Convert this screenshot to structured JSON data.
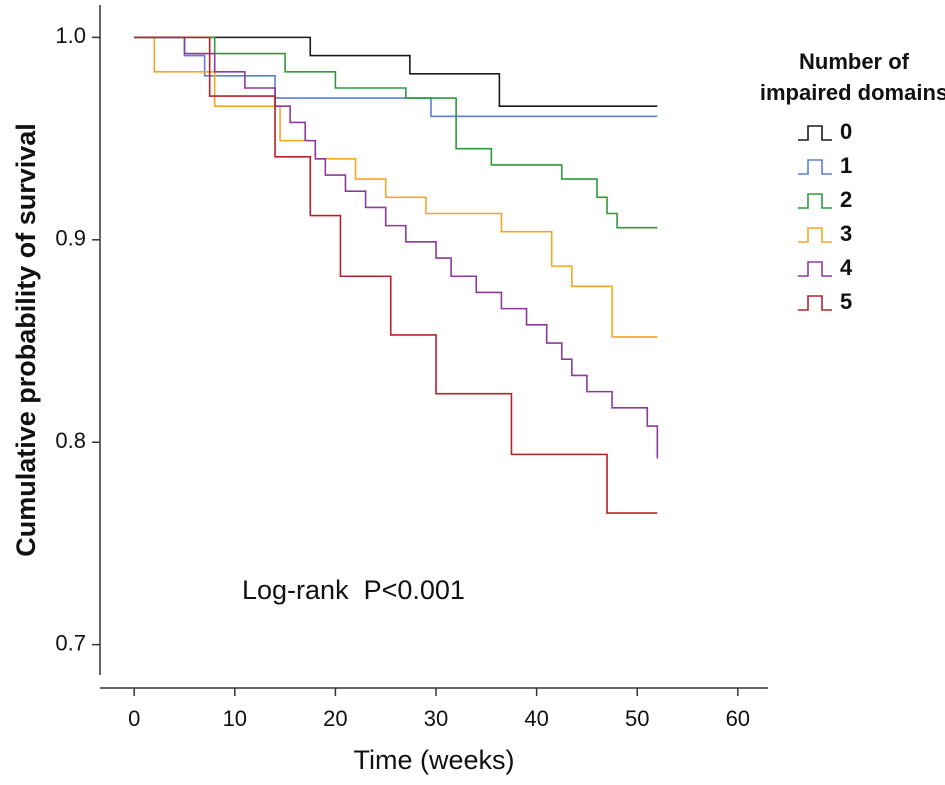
{
  "chart_data": {
    "type": "step",
    "x_label": "Time (weeks)",
    "y_label": "Cumulative probability of survival",
    "annotation": "Log-rank  P<0.001",
    "legend_title": [
      "Number of",
      "impaired domains"
    ],
    "legend_position": "right",
    "xlim": [
      -3.4,
      63
    ],
    "xticks": [
      0,
      10,
      20,
      30,
      40,
      50,
      60
    ],
    "ylim": [
      0.685,
      1.016
    ],
    "yticks": [
      {
        "value": 1,
        "label": "1.0"
      },
      0.9,
      0.8,
      0.7
    ],
    "series": [
      {
        "name": "0",
        "color": "#1a1a1a",
        "x": [
          0,
          17.5,
          27.4,
          36.3,
          52
        ],
        "values": [
          1,
          0.991,
          0.982,
          0.966,
          0.966
        ]
      },
      {
        "name": "1",
        "color": "#5b7fd6",
        "x": [
          0,
          5,
          7,
          14,
          29.5,
          52
        ],
        "values": [
          1,
          0.991,
          0.981,
          0.97,
          0.961,
          0.961
        ]
      },
      {
        "name": "2",
        "color": "#2e9a3a",
        "x": [
          0,
          8,
          15,
          20,
          27,
          32,
          35.5,
          42.5,
          46,
          47,
          48,
          52
        ],
        "values": [
          1,
          0.992,
          0.983,
          0.975,
          0.97,
          0.945,
          0.937,
          0.93,
          0.921,
          0.913,
          0.906,
          0.906
        ]
      },
      {
        "name": "3",
        "color": "#f5a623",
        "x": [
          0,
          2,
          8,
          14.5,
          18,
          22,
          25,
          29,
          36.5,
          41.5,
          43.5,
          47.5,
          52
        ],
        "values": [
          1,
          0.983,
          0.966,
          0.949,
          0.94,
          0.93,
          0.921,
          0.913,
          0.904,
          0.887,
          0.877,
          0.852,
          0.852
        ]
      },
      {
        "name": "4",
        "color": "#8b3a9a",
        "x": [
          0,
          5,
          8,
          11,
          14,
          15.5,
          17,
          18,
          19,
          21,
          23,
          25,
          27,
          30,
          31.5,
          34,
          36.5,
          39,
          41,
          42.5,
          43.5,
          45,
          47.5,
          51,
          52
        ],
        "values": [
          1,
          0.992,
          0.983,
          0.975,
          0.966,
          0.958,
          0.949,
          0.94,
          0.932,
          0.924,
          0.916,
          0.907,
          0.899,
          0.891,
          0.882,
          0.874,
          0.866,
          0.858,
          0.849,
          0.841,
          0.833,
          0.825,
          0.817,
          0.808,
          0.792
        ]
      },
      {
        "name": "5",
        "color": "#b5222a",
        "x": [
          0,
          7.5,
          14,
          17.5,
          20.5,
          25.5,
          30,
          37.5,
          47,
          52
        ],
        "values": [
          1,
          0.971,
          0.941,
          0.912,
          0.882,
          0.853,
          0.824,
          0.794,
          0.765,
          0.765
        ]
      }
    ]
  }
}
